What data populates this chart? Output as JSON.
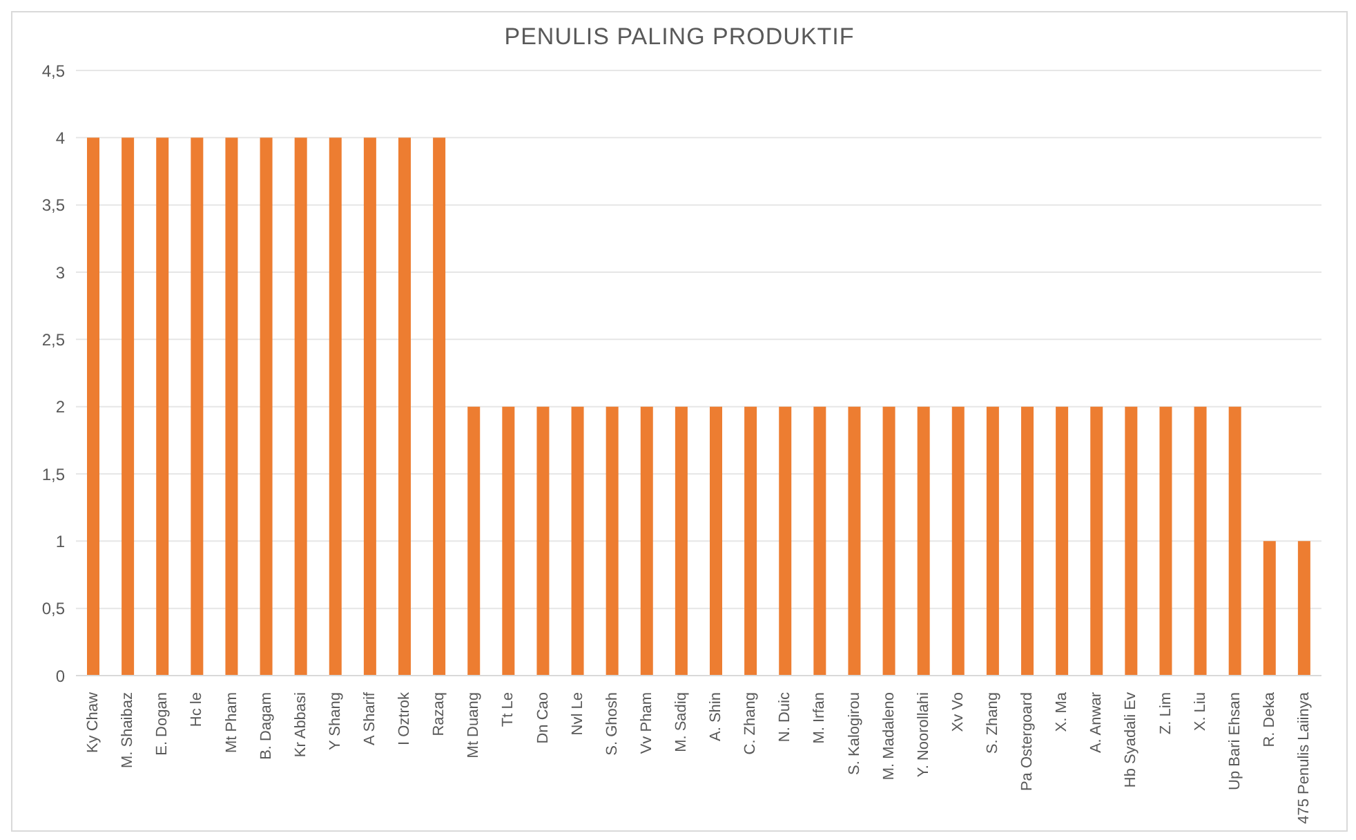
{
  "chart_data": {
    "type": "bar",
    "title": "PENULIS PALING PRODUKTIF",
    "categories": [
      "Ky Chaw",
      "M. Shaibaz",
      "E. Dogan",
      "Hc le",
      "Mt Pham",
      "B. Dagam",
      "Kr Abbasi",
      "Y Shang",
      "A Sharif",
      "I Oztrok",
      "Razaq",
      "Mt Duang",
      "Tt Le",
      "Dn Cao",
      "Nvl Le",
      "S. Ghosh",
      "Vv Pham",
      "M. Sadiq",
      "A. Shin",
      "C. Zhang",
      "N. Duic",
      "M. Irfan",
      "S. Kalogirou",
      "M. Madaleno",
      "Y. Noorollahi",
      "Xv Vo",
      "S. Zhang",
      "Pa Ostergoard",
      "X. Ma",
      "A. Anwar",
      "Hb Syadali Ev",
      "Z. Lim",
      "X. Liu",
      "Up Bari Ehsan",
      "R. Deka",
      "475 Penulis Laiinya"
    ],
    "values": [
      4,
      4,
      4,
      4,
      4,
      4,
      4,
      4,
      4,
      4,
      4,
      2,
      2,
      2,
      2,
      2,
      2,
      2,
      2,
      2,
      2,
      2,
      2,
      2,
      2,
      2,
      2,
      2,
      2,
      2,
      2,
      2,
      2,
      2,
      1,
      1
    ],
    "color": "#ed7d31",
    "ylim": [
      0,
      4.5
    ],
    "yticks": [
      0,
      {
        "value": 0.5,
        "label": "0,5"
      },
      1,
      {
        "value": 1.5,
        "label": "1,5"
      },
      2,
      {
        "value": 2.5,
        "label": "2,5"
      },
      3,
      {
        "value": 3.5,
        "label": "3,5"
      },
      4,
      {
        "value": 4.5,
        "label": "4,5"
      }
    ],
    "grid": "y"
  }
}
